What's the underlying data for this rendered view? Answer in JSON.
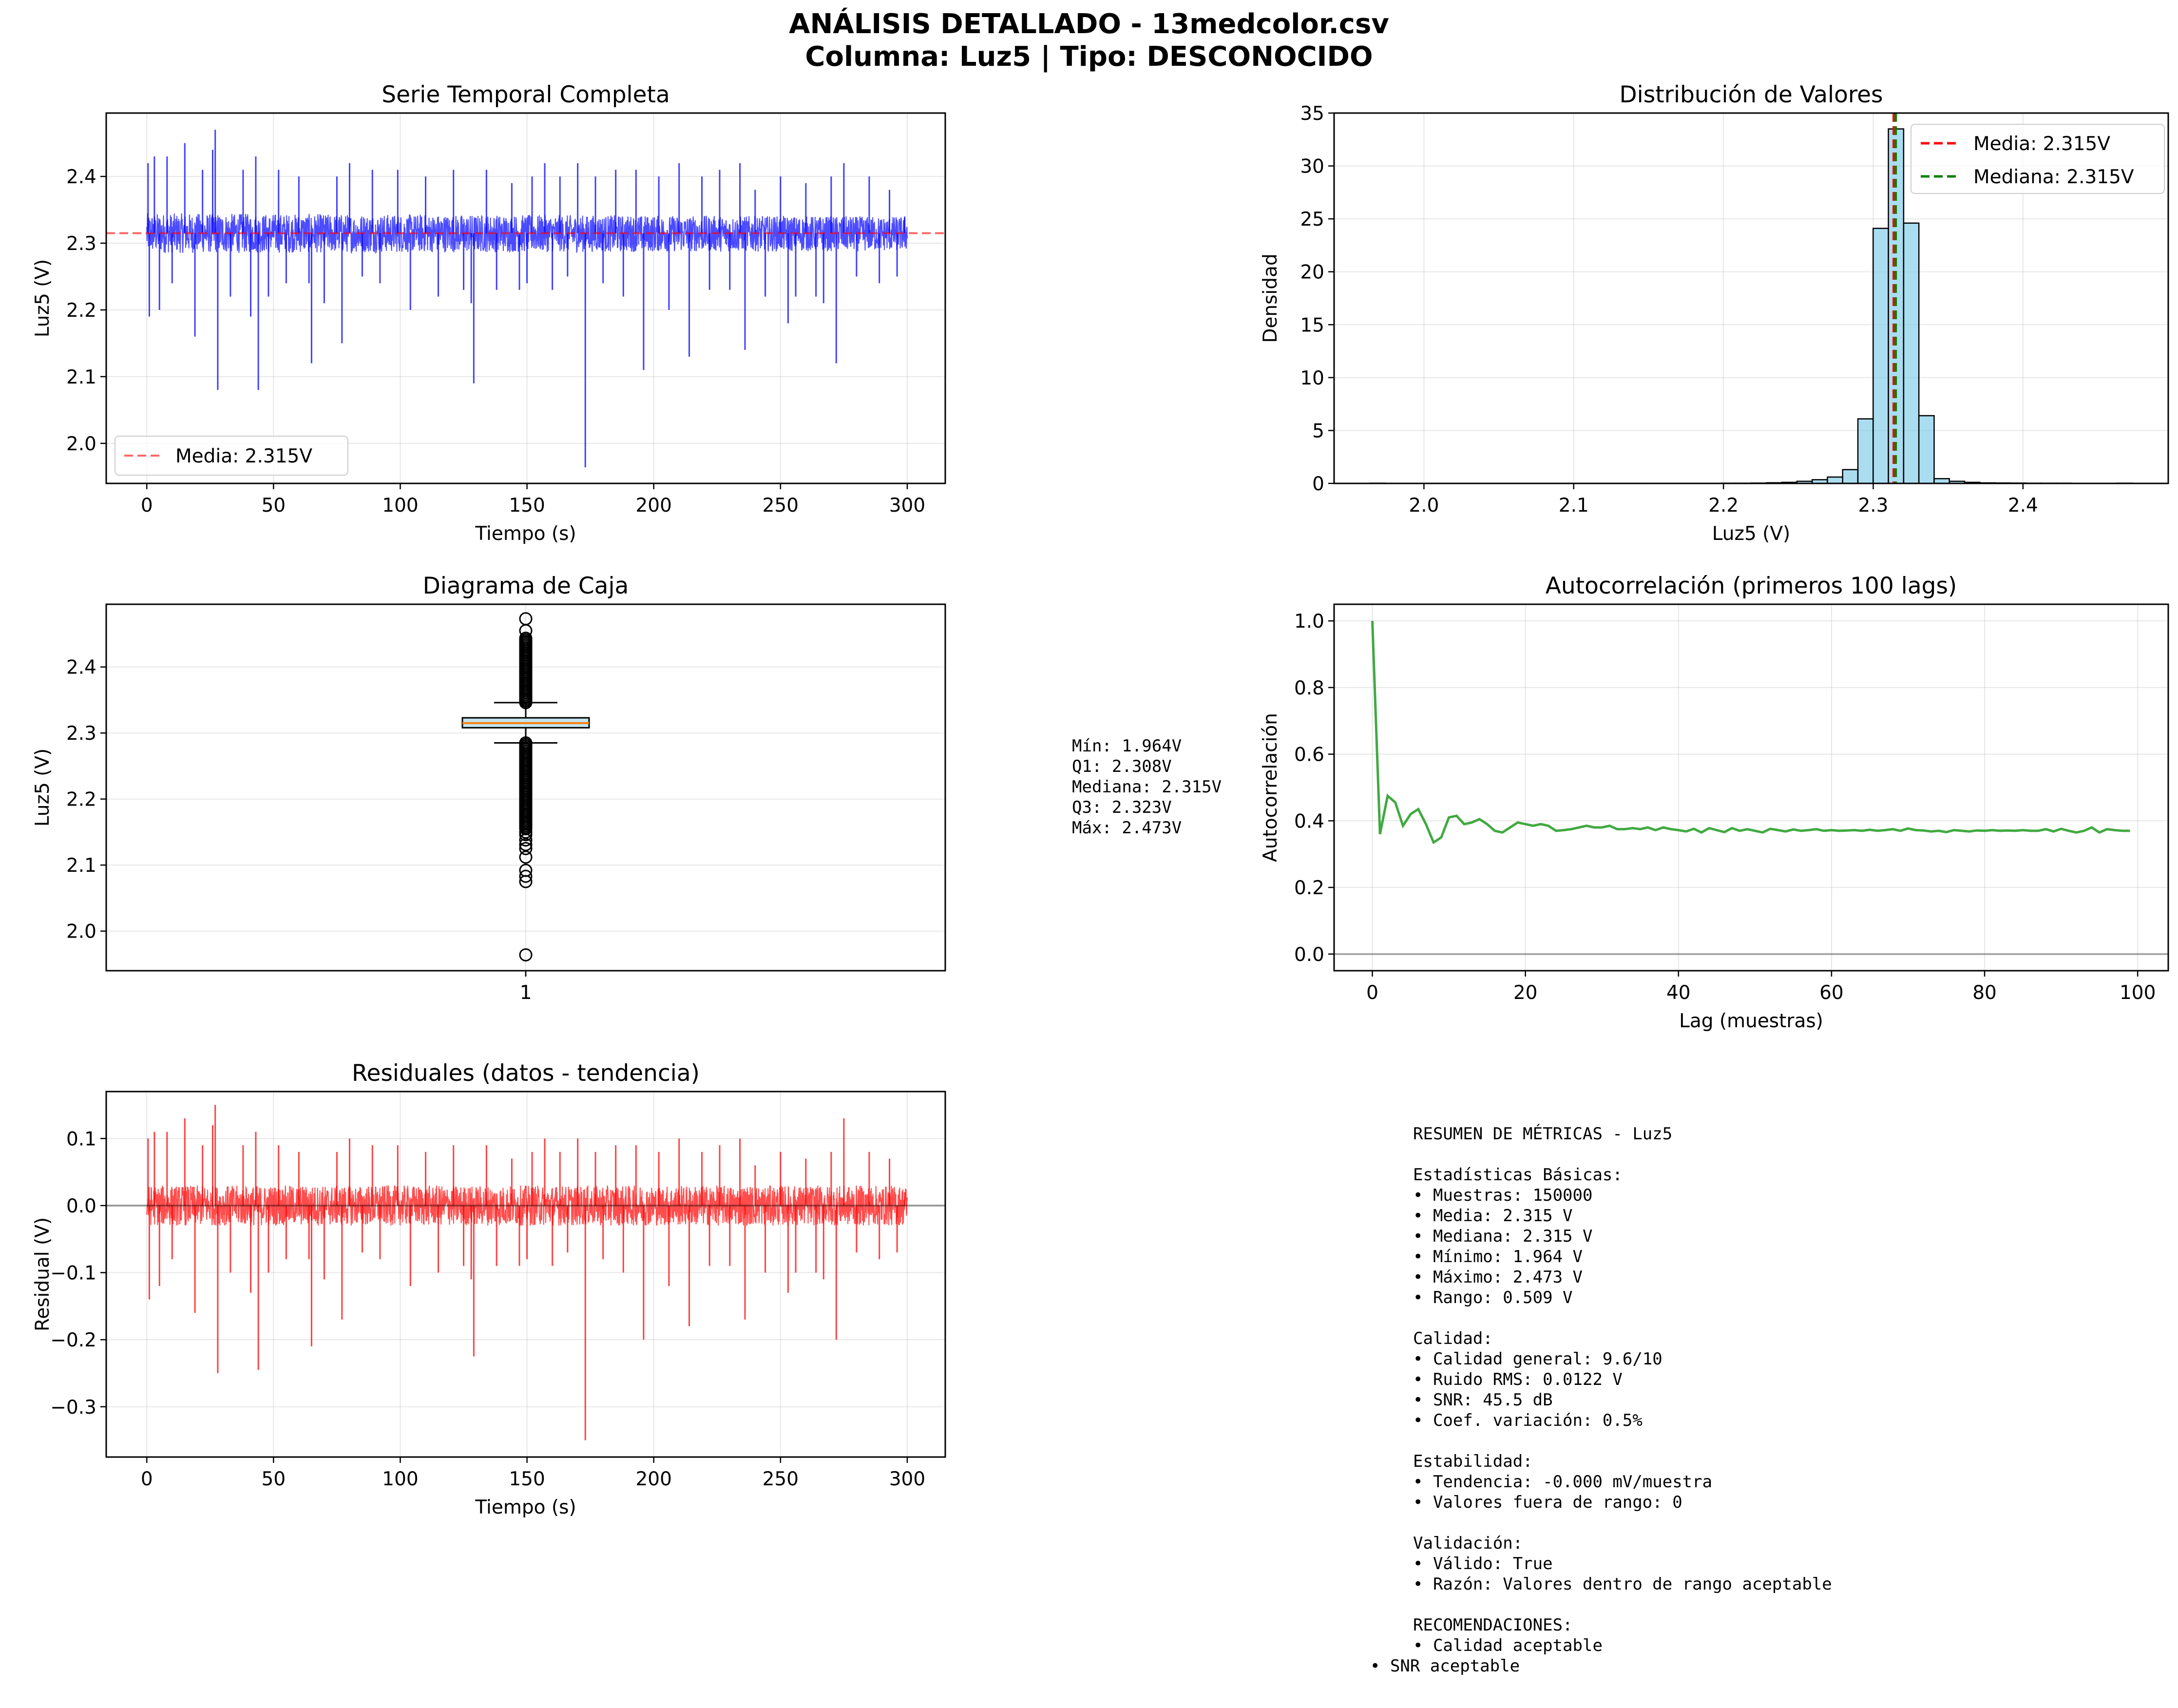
{
  "suptitle": {
    "line1": "ANÁLISIS DETALLADO - 13medcolor.csv",
    "line2": "Columna: Luz5 | Tipo: DESCONOCIDO"
  },
  "colors": {
    "series_blue": "#0000ff",
    "mean_red": "#ff0000",
    "median_green": "#008000",
    "hist_fill": "#87ceeb",
    "box_fill": "#add8e6",
    "box_median": "#ff7f0e",
    "acf_green": "#2ca02c",
    "residual_red": "#ff0000",
    "grid": "#dddddd"
  },
  "box_stats_text": [
    "Mín: 1.964V",
    "Q1: 2.308V",
    "Mediana: 2.315V",
    "Q3: 2.323V",
    "Máx: 2.473V"
  ],
  "summary_lines": [
    "RESUMEN DE MÉTRICAS - Luz5",
    "",
    "Estadísticas Básicas:",
    "• Muestras: 150000",
    "• Media: 2.315 V",
    "• Mediana: 2.315 V",
    "• Mínimo: 1.964 V",
    "• Máximo: 2.473 V",
    "• Rango: 0.509 V",
    "",
    "Calidad:",
    "• Calidad general: 9.6/10",
    "• Ruido RMS: 0.0122 V",
    "• SNR: 45.5 dB",
    "• Coef. variación: 0.5%",
    "",
    "Estabilidad:",
    "• Tendencia: -0.000 mV/muestra",
    "• Valores fuera de rango: 0",
    "",
    "Validación:",
    "• Válido: True",
    "• Razón: Valores dentro de rango aceptable",
    "",
    "RECOMENDACIONES:",
    "• Calidad aceptable"
  ],
  "summary_last_line": "• SNR aceptable",
  "chart_data": [
    {
      "id": "series",
      "type": "line",
      "title": "Serie Temporal Completa",
      "xlabel": "Tiempo (s)",
      "ylabel": "Luz5 (V)",
      "xlim": [
        -16,
        315
      ],
      "ylim": [
        1.94,
        2.495
      ],
      "xticks": [
        0,
        50,
        100,
        150,
        200,
        250,
        300
      ],
      "xtick_labels": [
        "0",
        "50",
        "100",
        "150",
        "200",
        "250",
        "300"
      ],
      "yticks": [
        2.0,
        2.1,
        2.2,
        2.3,
        2.4
      ],
      "ytick_labels": [
        "2.0",
        "2.1",
        "2.2",
        "2.3",
        "2.4"
      ],
      "grid": true,
      "legend_placement": "lower-left",
      "series": [
        {
          "name": "",
          "band_low": 2.285,
          "band_high": 2.345,
          "band_low_end": 2.288,
          "band_high_end": 2.34
        }
      ],
      "spikes": [
        [
          0.5,
          2.42
        ],
        [
          1,
          2.19
        ],
        [
          3,
          2.43
        ],
        [
          5,
          2.2
        ],
        [
          8,
          2.43
        ],
        [
          10,
          2.24
        ],
        [
          15,
          2.45
        ],
        [
          19,
          2.16
        ],
        [
          22,
          2.41
        ],
        [
          26,
          2.44
        ],
        [
          27,
          2.47
        ],
        [
          28,
          2.08
        ],
        [
          33,
          2.22
        ],
        [
          38,
          2.41
        ],
        [
          41,
          2.19
        ],
        [
          43,
          2.43
        ],
        [
          44,
          2.08
        ],
        [
          48,
          2.22
        ],
        [
          52,
          2.41
        ],
        [
          55,
          2.24
        ],
        [
          60,
          2.4
        ],
        [
          64,
          2.24
        ],
        [
          65,
          2.12
        ],
        [
          70,
          2.21
        ],
        [
          75,
          2.4
        ],
        [
          77,
          2.15
        ],
        [
          80,
          2.42
        ],
        [
          85,
          2.25
        ],
        [
          89,
          2.41
        ],
        [
          92,
          2.24
        ],
        [
          99,
          2.41
        ],
        [
          104,
          2.2
        ],
        [
          110,
          2.4
        ],
        [
          115,
          2.22
        ],
        [
          121,
          2.41
        ],
        [
          125,
          2.23
        ],
        [
          128,
          2.21
        ],
        [
          129,
          2.09
        ],
        [
          134,
          2.41
        ],
        [
          138,
          2.23
        ],
        [
          144,
          2.39
        ],
        [
          147,
          2.23
        ],
        [
          150,
          2.24
        ],
        [
          152,
          2.4
        ],
        [
          157,
          2.42
        ],
        [
          160,
          2.23
        ],
        [
          163,
          2.4
        ],
        [
          166,
          2.25
        ],
        [
          170,
          2.42
        ],
        [
          173,
          1.964
        ],
        [
          177,
          2.4
        ],
        [
          180,
          2.24
        ],
        [
          185,
          2.41
        ],
        [
          188,
          2.22
        ],
        [
          193,
          2.41
        ],
        [
          196,
          2.11
        ],
        [
          202,
          2.4
        ],
        [
          206,
          2.2
        ],
        [
          210,
          2.42
        ],
        [
          214,
          2.13
        ],
        [
          219,
          2.4
        ],
        [
          222,
          2.23
        ],
        [
          226,
          2.41
        ],
        [
          230,
          2.23
        ],
        [
          234,
          2.42
        ],
        [
          236,
          2.14
        ],
        [
          240,
          2.38
        ],
        [
          244,
          2.22
        ],
        [
          250,
          2.4
        ],
        [
          253,
          2.18
        ],
        [
          256,
          2.22
        ],
        [
          260,
          2.39
        ],
        [
          264,
          2.22
        ],
        [
          267,
          2.21
        ],
        [
          270,
          2.4
        ],
        [
          272,
          2.12
        ],
        [
          275,
          2.42
        ],
        [
          280,
          2.25
        ],
        [
          285,
          2.4
        ],
        [
          289,
          2.24
        ],
        [
          293,
          2.38
        ],
        [
          296,
          2.25
        ],
        [
          299,
          2.34
        ]
      ],
      "mean_line": 2.315,
      "mean_label": "Media: 2.315V"
    },
    {
      "id": "histogram",
      "type": "bar",
      "title": "Distribución de Valores",
      "xlabel": "Luz5 (V)",
      "ylabel": "Densidad",
      "xlim": [
        1.94,
        2.497
      ],
      "ylim": [
        0,
        35
      ],
      "xticks": [
        2.0,
        2.1,
        2.2,
        2.3,
        2.4
      ],
      "xtick_labels": [
        "2.0",
        "2.1",
        "2.2",
        "2.3",
        "2.4"
      ],
      "yticks": [
        0,
        5,
        10,
        15,
        20,
        25,
        30,
        35
      ],
      "ytick_labels": [
        "0",
        "5",
        "10",
        "15",
        "20",
        "25",
        "30",
        "35"
      ],
      "grid": true,
      "legend_placement": "top-right",
      "bin_start": 1.964,
      "bin_width": 0.01018,
      "values": [
        0.02,
        0.01,
        0.01,
        0.01,
        0.01,
        0.01,
        0.01,
        0.01,
        0.01,
        0.01,
        0.01,
        0.01,
        0.01,
        0.01,
        0.01,
        0.01,
        0.01,
        0.01,
        0.01,
        0.01,
        0.01,
        0.01,
        0.01,
        0.02,
        0.02,
        0.03,
        0.06,
        0.1,
        0.2,
        0.35,
        0.6,
        1.3,
        6.1,
        24.1,
        33.5,
        24.6,
        6.4,
        0.45,
        0.2,
        0.1,
        0.05,
        0.04,
        0.03,
        0.02,
        0.02,
        0.02,
        0.01,
        0.01,
        0.01,
        0.02
      ],
      "mean_value": 2.315,
      "median_value": 2.315,
      "mean_label": "Media: 2.315V",
      "median_label": "Mediana: 2.315V"
    },
    {
      "id": "boxplot",
      "type": "box",
      "title": "Diagrama de Caja",
      "ylabel": "Luz5 (V)",
      "xlim": [
        0.5,
        1.5
      ],
      "ylim": [
        1.94,
        2.495
      ],
      "xticks": [
        1
      ],
      "xtick_labels": [
        "1"
      ],
      "yticks": [
        2.0,
        2.1,
        2.2,
        2.3,
        2.4
      ],
      "ytick_labels": [
        "2.0",
        "2.1",
        "2.2",
        "2.3",
        "2.4"
      ],
      "grid": true,
      "q1": 2.308,
      "median": 2.315,
      "q3": 2.323,
      "whisker_low": 2.285,
      "whisker_high": 2.346,
      "outlier_bands": [
        [
          2.346,
          2.445
        ],
        [
          2.155,
          2.285
        ]
      ],
      "outliers": [
        1.964,
        2.075,
        2.083,
        2.092,
        2.112,
        2.125,
        2.131,
        2.138,
        2.146,
        2.15,
        2.455,
        2.473
      ]
    },
    {
      "id": "autocorr",
      "type": "line",
      "title": "Autocorrelación (primeros 100 lags)",
      "xlabel": "Lag (muestras)",
      "ylabel": "Autocorrelación",
      "xlim": [
        -5,
        104
      ],
      "ylim": [
        -0.05,
        1.05
      ],
      "xticks": [
        0,
        20,
        40,
        60,
        80,
        100
      ],
      "xtick_labels": [
        "0",
        "20",
        "40",
        "60",
        "80",
        "100"
      ],
      "yticks": [
        0.0,
        0.2,
        0.4,
        0.6,
        0.8,
        1.0
      ],
      "ytick_labels": [
        "0.0",
        "0.2",
        "0.4",
        "0.6",
        "0.8",
        "1.0"
      ],
      "grid": true,
      "x": [
        0,
        1,
        2,
        3,
        4,
        5,
        6,
        7,
        8,
        9,
        10,
        11,
        12,
        13,
        14,
        15,
        16,
        17,
        18,
        19,
        20,
        21,
        22,
        23,
        24,
        25,
        26,
        27,
        28,
        29,
        30,
        31,
        32,
        33,
        34,
        35,
        36,
        37,
        38,
        39,
        40,
        41,
        42,
        43,
        44,
        45,
        46,
        47,
        48,
        49,
        50,
        51,
        52,
        53,
        54,
        55,
        56,
        57,
        58,
        59,
        60,
        61,
        62,
        63,
        64,
        65,
        66,
        67,
        68,
        69,
        70,
        71,
        72,
        73,
        74,
        75,
        76,
        77,
        78,
        79,
        80,
        81,
        82,
        83,
        84,
        85,
        86,
        87,
        88,
        89,
        90,
        91,
        92,
        93,
        94,
        95,
        96,
        97,
        98,
        99
      ],
      "values": [
        1.0,
        0.36,
        0.475,
        0.455,
        0.385,
        0.42,
        0.435,
        0.39,
        0.335,
        0.35,
        0.41,
        0.415,
        0.39,
        0.395,
        0.405,
        0.39,
        0.37,
        0.365,
        0.38,
        0.395,
        0.39,
        0.385,
        0.39,
        0.385,
        0.37,
        0.372,
        0.375,
        0.38,
        0.385,
        0.38,
        0.38,
        0.385,
        0.375,
        0.375,
        0.378,
        0.375,
        0.38,
        0.372,
        0.38,
        0.375,
        0.372,
        0.368,
        0.376,
        0.365,
        0.378,
        0.372,
        0.366,
        0.378,
        0.37,
        0.375,
        0.37,
        0.365,
        0.376,
        0.372,
        0.368,
        0.374,
        0.37,
        0.372,
        0.375,
        0.37,
        0.372,
        0.37,
        0.371,
        0.372,
        0.37,
        0.373,
        0.37,
        0.372,
        0.375,
        0.37,
        0.377,
        0.372,
        0.371,
        0.368,
        0.37,
        0.366,
        0.372,
        0.37,
        0.368,
        0.371,
        0.37,
        0.372,
        0.37,
        0.371,
        0.37,
        0.372,
        0.37,
        0.37,
        0.375,
        0.368,
        0.376,
        0.37,
        0.365,
        0.37,
        0.38,
        0.365,
        0.375,
        0.372,
        0.37,
        0.37
      ],
      "zero_line": 0.0
    },
    {
      "id": "residuals",
      "type": "line",
      "title": "Residuales (datos - tendencia)",
      "xlabel": "Tiempo (s)",
      "ylabel": "Residual (V)",
      "xlim": [
        -16,
        315
      ],
      "ylim": [
        -0.375,
        0.17
      ],
      "xticks": [
        0,
        50,
        100,
        150,
        200,
        250,
        300
      ],
      "xtick_labels": [
        "0",
        "50",
        "100",
        "150",
        "200",
        "250",
        "300"
      ],
      "yticks": [
        -0.3,
        -0.2,
        -0.1,
        0.0,
        0.1
      ],
      "ytick_labels": [
        "−0.3",
        "−0.2",
        "−0.1",
        "0.0",
        "0.1"
      ],
      "grid": true,
      "series": [
        {
          "name": "",
          "band_low": -0.03,
          "band_high": 0.03
        }
      ],
      "spikes": [
        [
          0.5,
          0.1
        ],
        [
          1,
          -0.14
        ],
        [
          3,
          0.11
        ],
        [
          5,
          -0.12
        ],
        [
          8,
          0.11
        ],
        [
          10,
          -0.08
        ],
        [
          15,
          0.13
        ],
        [
          19,
          -0.16
        ],
        [
          22,
          0.09
        ],
        [
          26,
          0.12
        ],
        [
          27,
          0.15
        ],
        [
          28,
          -0.25
        ],
        [
          33,
          -0.1
        ],
        [
          38,
          0.09
        ],
        [
          41,
          -0.13
        ],
        [
          43,
          0.11
        ],
        [
          44,
          -0.245
        ],
        [
          48,
          -0.1
        ],
        [
          52,
          0.09
        ],
        [
          55,
          -0.08
        ],
        [
          60,
          0.08
        ],
        [
          64,
          -0.08
        ],
        [
          65,
          -0.21
        ],
        [
          70,
          -0.11
        ],
        [
          75,
          0.08
        ],
        [
          77,
          -0.17
        ],
        [
          80,
          0.1
        ],
        [
          85,
          -0.07
        ],
        [
          89,
          0.09
        ],
        [
          92,
          -0.08
        ],
        [
          99,
          0.09
        ],
        [
          104,
          -0.12
        ],
        [
          110,
          0.08
        ],
        [
          115,
          -0.1
        ],
        [
          121,
          0.09
        ],
        [
          125,
          -0.09
        ],
        [
          128,
          -0.11
        ],
        [
          129,
          -0.225
        ],
        [
          134,
          0.09
        ],
        [
          138,
          -0.09
        ],
        [
          144,
          0.07
        ],
        [
          147,
          -0.09
        ],
        [
          150,
          -0.08
        ],
        [
          152,
          0.08
        ],
        [
          157,
          0.1
        ],
        [
          160,
          -0.09
        ],
        [
          163,
          0.08
        ],
        [
          166,
          -0.07
        ],
        [
          170,
          0.1
        ],
        [
          173,
          -0.35
        ],
        [
          177,
          0.08
        ],
        [
          180,
          -0.08
        ],
        [
          185,
          0.09
        ],
        [
          188,
          -0.1
        ],
        [
          193,
          0.09
        ],
        [
          196,
          -0.2
        ],
        [
          202,
          0.08
        ],
        [
          206,
          -0.12
        ],
        [
          210,
          0.1
        ],
        [
          214,
          -0.18
        ],
        [
          219,
          0.08
        ],
        [
          222,
          -0.09
        ],
        [
          226,
          0.09
        ],
        [
          230,
          -0.09
        ],
        [
          234,
          0.1
        ],
        [
          236,
          -0.17
        ],
        [
          240,
          0.06
        ],
        [
          244,
          -0.1
        ],
        [
          250,
          0.08
        ],
        [
          253,
          -0.13
        ],
        [
          256,
          -0.1
        ],
        [
          260,
          0.07
        ],
        [
          264,
          -0.1
        ],
        [
          267,
          -0.11
        ],
        [
          270,
          0.08
        ],
        [
          272,
          -0.2
        ],
        [
          275,
          0.13
        ],
        [
          280,
          -0.07
        ],
        [
          285,
          0.08
        ],
        [
          289,
          -0.08
        ],
        [
          293,
          0.07
        ],
        [
          296,
          -0.07
        ],
        [
          299,
          0.02
        ]
      ],
      "zero_line": 0.0
    }
  ]
}
